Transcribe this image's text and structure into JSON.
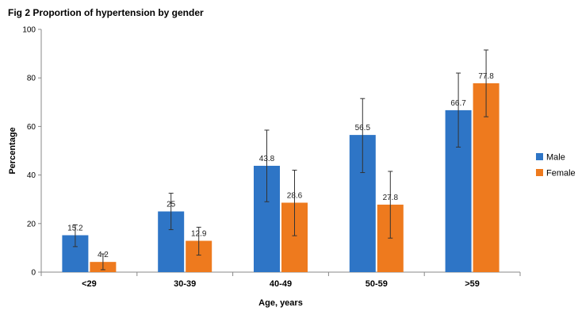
{
  "figure_title": "Fig 2 Proportion of hypertension by gender",
  "chart_data": {
    "type": "bar",
    "title": "Fig 2 Proportion of hypertension by gender",
    "xlabel": "Age, years",
    "ylabel": "Percentage",
    "ylim": [
      0,
      100
    ],
    "yticks": [
      0,
      20,
      40,
      60,
      80,
      100
    ],
    "categories": [
      "<29",
      "30-39",
      "40-49",
      "50-59",
      ">59"
    ],
    "series": [
      {
        "name": "Male",
        "color": "#2E75C6",
        "values": [
          15.2,
          25,
          43.8,
          56.5,
          66.7
        ],
        "labels": [
          "15.2",
          "25",
          "43.8",
          "56.5",
          "66.7"
        ],
        "error_low": [
          10.5,
          17.5,
          29,
          41,
          51.5
        ],
        "error_high": [
          19.5,
          32.5,
          58.5,
          71.5,
          82
        ]
      },
      {
        "name": "Female",
        "color": "#EE7A1E",
        "values": [
          4.2,
          12.9,
          28.6,
          27.8,
          77.8
        ],
        "labels": [
          "4.2",
          "12.9",
          "28.6",
          "27.8",
          "77.8"
        ],
        "error_low": [
          1,
          7,
          15,
          14,
          64
        ],
        "error_high": [
          7.5,
          18.5,
          42,
          41.5,
          91.5
        ]
      }
    ],
    "legend_position": "right",
    "grid": false
  }
}
